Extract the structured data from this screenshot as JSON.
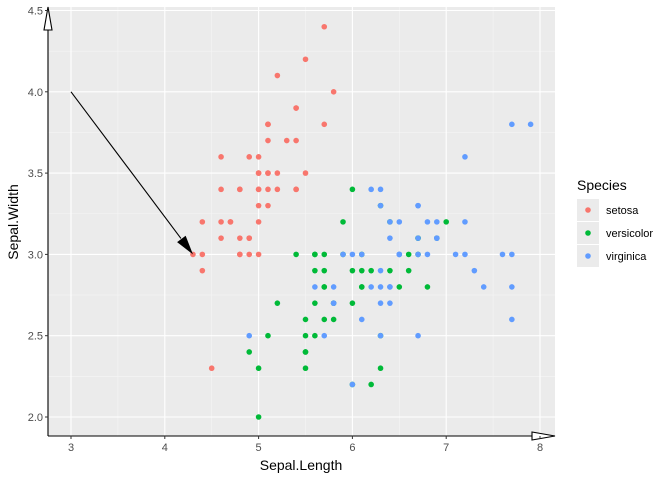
{
  "chart_data": {
    "type": "scatter",
    "xlabel": "Sepal.Length",
    "ylabel": "Sepal.Width",
    "xlim": [
      2.75,
      8.2
    ],
    "ylim": [
      1.88,
      4.52
    ],
    "x_ticks": [
      3,
      4,
      5,
      6,
      7,
      8
    ],
    "x_tick_labels": [
      "3",
      "4",
      "5",
      "6",
      "7",
      "8"
    ],
    "y_ticks": [
      2.0,
      2.5,
      3.0,
      3.5,
      4.0,
      4.5
    ],
    "y_tick_labels": [
      "2.0",
      "2.5",
      "3.0",
      "3.5",
      "4.0",
      "4.5"
    ],
    "grid": true,
    "legend": {
      "title": "Species",
      "placement": "right"
    },
    "annotation": {
      "type": "arrow",
      "from": [
        3,
        4.0
      ],
      "to": [
        4.3,
        3.0
      ]
    },
    "series": [
      {
        "name": "setosa",
        "color": "#F8766D",
        "points": [
          [
            5.1,
            3.5
          ],
          [
            4.9,
            3.0
          ],
          [
            4.7,
            3.2
          ],
          [
            4.6,
            3.1
          ],
          [
            5.0,
            3.6
          ],
          [
            5.4,
            3.9
          ],
          [
            4.6,
            3.4
          ],
          [
            5.0,
            3.4
          ],
          [
            4.4,
            2.9
          ],
          [
            4.9,
            3.1
          ],
          [
            5.4,
            3.7
          ],
          [
            4.8,
            3.4
          ],
          [
            4.8,
            3.0
          ],
          [
            4.3,
            3.0
          ],
          [
            5.8,
            4.0
          ],
          [
            5.7,
            4.4
          ],
          [
            5.4,
            3.9
          ],
          [
            5.1,
            3.5
          ],
          [
            5.7,
            3.8
          ],
          [
            5.1,
            3.8
          ],
          [
            5.4,
            3.4
          ],
          [
            5.1,
            3.7
          ],
          [
            4.6,
            3.6
          ],
          [
            5.1,
            3.3
          ],
          [
            4.8,
            3.4
          ],
          [
            5.0,
            3.0
          ],
          [
            5.0,
            3.4
          ],
          [
            5.2,
            3.5
          ],
          [
            5.2,
            3.4
          ],
          [
            4.7,
            3.2
          ],
          [
            4.8,
            3.1
          ],
          [
            5.4,
            3.4
          ],
          [
            5.2,
            4.1
          ],
          [
            5.5,
            4.2
          ],
          [
            4.9,
            3.1
          ],
          [
            5.0,
            3.2
          ],
          [
            5.5,
            3.5
          ],
          [
            4.9,
            3.6
          ],
          [
            4.4,
            3.0
          ],
          [
            5.1,
            3.4
          ],
          [
            5.0,
            3.5
          ],
          [
            4.5,
            2.3
          ],
          [
            4.4,
            3.2
          ],
          [
            5.0,
            3.5
          ],
          [
            5.1,
            3.8
          ],
          [
            4.8,
            3.0
          ],
          [
            5.1,
            3.8
          ],
          [
            4.6,
            3.2
          ],
          [
            5.3,
            3.7
          ],
          [
            5.0,
            3.3
          ]
        ]
      },
      {
        "name": "versicolor",
        "color": "#00BA38",
        "points": [
          [
            7.0,
            3.2
          ],
          [
            6.4,
            3.2
          ],
          [
            6.9,
            3.1
          ],
          [
            5.5,
            2.3
          ],
          [
            6.5,
            2.8
          ],
          [
            5.7,
            2.8
          ],
          [
            6.3,
            3.3
          ],
          [
            4.9,
            2.4
          ],
          [
            6.6,
            2.9
          ],
          [
            5.2,
            2.7
          ],
          [
            5.0,
            2.0
          ],
          [
            5.9,
            3.0
          ],
          [
            6.0,
            2.2
          ],
          [
            6.1,
            2.9
          ],
          [
            5.6,
            2.9
          ],
          [
            6.7,
            3.1
          ],
          [
            5.6,
            3.0
          ],
          [
            5.8,
            2.7
          ],
          [
            6.2,
            2.2
          ],
          [
            5.6,
            2.5
          ],
          [
            5.9,
            3.2
          ],
          [
            6.1,
            2.8
          ],
          [
            6.3,
            2.5
          ],
          [
            6.1,
            2.8
          ],
          [
            6.4,
            2.9
          ],
          [
            6.6,
            3.0
          ],
          [
            6.8,
            2.8
          ],
          [
            6.7,
            3.0
          ],
          [
            6.0,
            2.9
          ],
          [
            5.7,
            2.6
          ],
          [
            5.5,
            2.4
          ],
          [
            5.5,
            2.4
          ],
          [
            5.8,
            2.7
          ],
          [
            6.0,
            2.7
          ],
          [
            5.4,
            3.0
          ],
          [
            6.0,
            3.4
          ],
          [
            6.7,
            3.1
          ],
          [
            6.3,
            2.3
          ],
          [
            5.6,
            3.0
          ],
          [
            5.5,
            2.5
          ],
          [
            5.5,
            2.6
          ],
          [
            6.1,
            3.0
          ],
          [
            5.8,
            2.6
          ],
          [
            5.0,
            2.3
          ],
          [
            5.6,
            2.7
          ],
          [
            5.7,
            3.0
          ],
          [
            5.7,
            2.9
          ],
          [
            6.2,
            2.9
          ],
          [
            5.1,
            2.5
          ],
          [
            5.7,
            2.8
          ]
        ]
      },
      {
        "name": "virginica",
        "color": "#619CFF",
        "points": [
          [
            6.3,
            3.3
          ],
          [
            5.8,
            2.7
          ],
          [
            7.1,
            3.0
          ],
          [
            6.3,
            2.9
          ],
          [
            6.5,
            3.0
          ],
          [
            7.6,
            3.0
          ],
          [
            4.9,
            2.5
          ],
          [
            7.3,
            2.9
          ],
          [
            6.7,
            2.5
          ],
          [
            7.2,
            3.6
          ],
          [
            6.5,
            3.2
          ],
          [
            6.4,
            2.7
          ],
          [
            6.8,
            3.0
          ],
          [
            5.7,
            2.5
          ],
          [
            5.8,
            2.8
          ],
          [
            6.4,
            3.2
          ],
          [
            6.5,
            3.0
          ],
          [
            7.7,
            3.8
          ],
          [
            7.7,
            2.6
          ],
          [
            6.0,
            2.2
          ],
          [
            6.9,
            3.2
          ],
          [
            5.6,
            2.8
          ],
          [
            7.7,
            2.8
          ],
          [
            6.3,
            2.7
          ],
          [
            6.7,
            3.3
          ],
          [
            7.2,
            3.2
          ],
          [
            6.2,
            2.8
          ],
          [
            6.1,
            3.0
          ],
          [
            6.4,
            2.8
          ],
          [
            7.2,
            3.0
          ],
          [
            7.4,
            2.8
          ],
          [
            7.9,
            3.8
          ],
          [
            6.4,
            2.8
          ],
          [
            6.3,
            2.8
          ],
          [
            6.1,
            2.6
          ],
          [
            7.7,
            3.0
          ],
          [
            6.3,
            3.4
          ],
          [
            6.4,
            3.1
          ],
          [
            6.0,
            3.0
          ],
          [
            6.9,
            3.1
          ],
          [
            6.7,
            3.1
          ],
          [
            6.9,
            3.1
          ],
          [
            5.8,
            2.7
          ],
          [
            6.8,
            3.2
          ],
          [
            6.7,
            3.3
          ],
          [
            6.7,
            3.0
          ],
          [
            6.3,
            2.5
          ],
          [
            6.5,
            3.0
          ],
          [
            6.2,
            3.4
          ],
          [
            5.9,
            3.0
          ]
        ]
      }
    ]
  }
}
